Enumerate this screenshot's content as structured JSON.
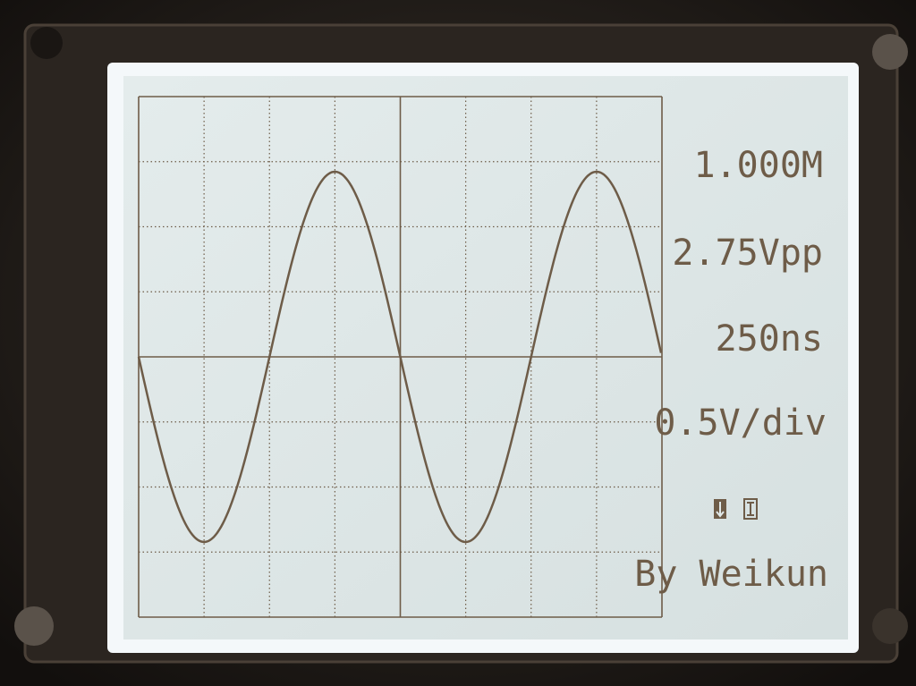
{
  "readouts": {
    "frequency": "1.000M",
    "amplitude": "2.75Vpp",
    "timebase": "250ns",
    "volts_per_div": "0.5V/div"
  },
  "credit": "By Weikun"
}
